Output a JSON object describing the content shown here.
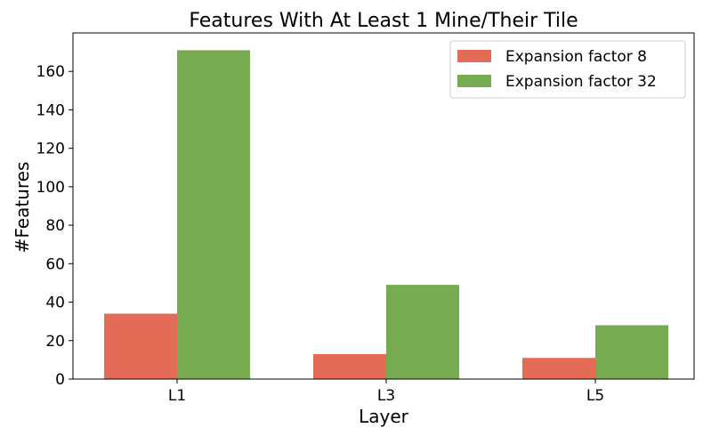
{
  "chart_data": {
    "type": "bar",
    "title": "Features With At Least 1 Mine/Their Tile",
    "xlabel": "Layer",
    "ylabel": "#Features",
    "categories": [
      "L1",
      "L3",
      "L5"
    ],
    "series": [
      {
        "name": "Expansion factor 8",
        "values": [
          34,
          13,
          11
        ],
        "color": "#e46b55"
      },
      {
        "name": "Expansion factor 32",
        "values": [
          171,
          49,
          28
        ],
        "color": "#76ab51"
      }
    ],
    "ylim": [
      0,
      180
    ],
    "yticks": [
      0,
      20,
      40,
      60,
      80,
      100,
      120,
      140,
      160
    ],
    "grid": false,
    "legend_position": "top-right"
  }
}
